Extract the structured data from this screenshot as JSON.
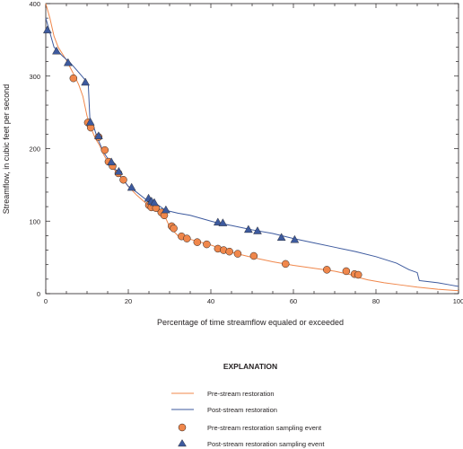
{
  "chart_data": {
    "type": "line",
    "xlabel": "Percentage of time streamflow equaled or exceeded",
    "ylabel": "Streamflow, in cubic feet per second",
    "xlim": [
      0,
      100
    ],
    "ylim": [
      0,
      400
    ],
    "x_ticks": [
      "0",
      "20",
      "40",
      "60",
      "80",
      "100"
    ],
    "y_ticks": [
      "0",
      "100",
      "200",
      "300",
      "400"
    ],
    "grid": false,
    "legend_title": "EXPLANATION",
    "legend_position": "bottom-center",
    "series": [
      {
        "name": "Pre-stream restoration",
        "kind": "line",
        "color": "#f0874b",
        "points": [
          [
            0,
            400
          ],
          [
            1,
            380
          ],
          [
            2,
            355
          ],
          [
            3,
            340
          ],
          [
            5,
            322
          ],
          [
            7,
            300
          ],
          [
            8,
            288
          ],
          [
            9,
            272
          ],
          [
            10,
            245
          ],
          [
            11,
            228
          ],
          [
            12,
            214
          ],
          [
            13,
            205
          ],
          [
            14,
            192
          ],
          [
            15,
            182
          ],
          [
            16,
            175
          ],
          [
            18,
            162
          ],
          [
            20,
            148
          ],
          [
            22,
            136
          ],
          [
            24,
            126
          ],
          [
            25,
            121
          ],
          [
            27,
            114
          ],
          [
            29,
            105
          ],
          [
            30,
            92
          ],
          [
            32,
            80
          ],
          [
            35,
            75
          ],
          [
            40,
            67
          ],
          [
            45,
            57
          ],
          [
            50,
            50
          ],
          [
            55,
            44
          ],
          [
            60,
            39
          ],
          [
            65,
            35
          ],
          [
            70,
            31
          ],
          [
            74,
            26
          ],
          [
            76,
            22
          ],
          [
            78,
            19
          ],
          [
            82,
            15
          ],
          [
            86,
            12
          ],
          [
            90,
            9
          ],
          [
            95,
            6
          ],
          [
            100,
            4
          ]
        ]
      },
      {
        "name": "Post-stream restoration",
        "kind": "line",
        "color": "#3d5a9e",
        "points": [
          [
            0,
            380
          ],
          [
            1,
            360
          ],
          [
            2,
            340
          ],
          [
            4,
            328
          ],
          [
            6,
            318
          ],
          [
            8,
            305
          ],
          [
            9.5,
            295
          ],
          [
            10.3,
            289
          ],
          [
            10.7,
            240
          ],
          [
            11.5,
            232
          ],
          [
            12.5,
            215
          ],
          [
            14,
            195
          ],
          [
            16,
            178
          ],
          [
            18,
            163
          ],
          [
            20,
            148
          ],
          [
            22,
            140
          ],
          [
            24,
            131
          ],
          [
            25,
            128
          ],
          [
            27,
            123
          ],
          [
            29,
            115
          ],
          [
            32,
            111
          ],
          [
            35,
            108
          ],
          [
            40,
            100
          ],
          [
            42,
            97
          ],
          [
            45,
            94
          ],
          [
            50,
            88
          ],
          [
            55,
            83
          ],
          [
            60,
            76
          ],
          [
            65,
            70
          ],
          [
            70,
            64
          ],
          [
            75,
            58
          ],
          [
            80,
            51
          ],
          [
            85,
            42
          ],
          [
            88,
            33
          ],
          [
            90,
            29
          ],
          [
            90.5,
            18
          ],
          [
            92,
            17
          ],
          [
            95,
            15
          ],
          [
            98,
            12
          ],
          [
            100,
            10
          ]
        ]
      },
      {
        "name": "Pre-stream restoration sampling event",
        "kind": "marker",
        "marker": "circle",
        "color": "#f0874b",
        "points": [
          [
            6.7,
            297
          ],
          [
            10.2,
            236
          ],
          [
            10.9,
            229
          ],
          [
            12.8,
            216
          ],
          [
            14.3,
            198
          ],
          [
            15.2,
            182
          ],
          [
            16.2,
            176
          ],
          [
            17.6,
            166
          ],
          [
            18.8,
            157
          ],
          [
            25,
            122
          ],
          [
            25.6,
            119
          ],
          [
            26.7,
            118
          ],
          [
            28,
            112
          ],
          [
            28.7,
            108
          ],
          [
            30.5,
            93
          ],
          [
            31,
            90
          ],
          [
            32.9,
            79
          ],
          [
            34.2,
            76
          ],
          [
            36.7,
            71
          ],
          [
            39,
            68
          ],
          [
            41.7,
            62
          ],
          [
            43.1,
            60
          ],
          [
            44.5,
            58
          ],
          [
            46.5,
            55
          ],
          [
            50.4,
            52
          ],
          [
            58.1,
            41
          ],
          [
            68.1,
            33
          ],
          [
            72.8,
            31
          ],
          [
            74.8,
            27
          ],
          [
            75.7,
            26
          ]
        ]
      },
      {
        "name": "Post-stream restoration sampling event",
        "kind": "marker",
        "marker": "triangle",
        "color": "#3d5a9e",
        "points": [
          [
            0.4,
            363
          ],
          [
            2.6,
            334
          ],
          [
            5.4,
            318
          ],
          [
            9.6,
            291
          ],
          [
            10.8,
            236
          ],
          [
            12.8,
            217
          ],
          [
            15.9,
            181
          ],
          [
            17.7,
            168
          ],
          [
            20.8,
            146
          ],
          [
            24.9,
            131
          ],
          [
            25.6,
            127
          ],
          [
            26.3,
            125
          ],
          [
            29.1,
            115
          ],
          [
            41.7,
            98
          ],
          [
            42.9,
            97
          ],
          [
            49.1,
            88
          ],
          [
            51.3,
            86
          ],
          [
            57.1,
            77
          ],
          [
            60.3,
            74
          ]
        ]
      }
    ]
  }
}
